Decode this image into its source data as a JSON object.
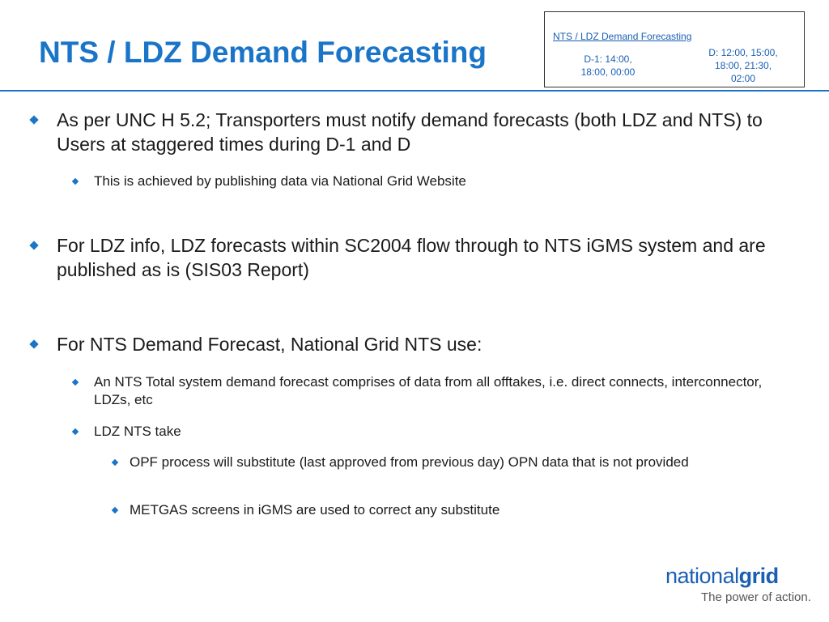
{
  "slide": {
    "title": "NTS / LDZ Demand Forecasting"
  },
  "info_box": {
    "title": "NTS / LDZ Demand Forecasting",
    "d_minus_1_line1": "D-1: 14:00,",
    "d_minus_1_line2": "18:00, 00:00",
    "d_line1": "D: 12:00, 15:00,",
    "d_line2": "18:00, 21:30,",
    "d_line3": "02:00"
  },
  "bullets": {
    "b1": "As per UNC H 5.2; Transporters must notify demand forecasts (both LDZ and NTS) to Users at staggered times during D-1 and D",
    "b1_1": "This is achieved by publishing data via National Grid Website",
    "b2": "For LDZ info, LDZ forecasts within SC2004 flow through to NTS iGMS system and are published as is (SIS03 Report)",
    "b3": "For NTS Demand Forecast, National Grid NTS use:",
    "b3_1": "An NTS Total system demand forecast comprises of data from all offtakes, i.e. direct connects, interconnector, LDZs, etc",
    "b3_2": "LDZ NTS take",
    "b3_2_1": "OPF process will substitute (last approved from previous day) OPN data that is not provided",
    "b3_2_2": "METGAS screens in iGMS are used to correct any substitute"
  },
  "logo": {
    "word_regular": "national",
    "word_bold": "grid",
    "tagline": "The power of action."
  },
  "colors": {
    "accent": "#1a75c8",
    "link": "#1a5fb4"
  }
}
